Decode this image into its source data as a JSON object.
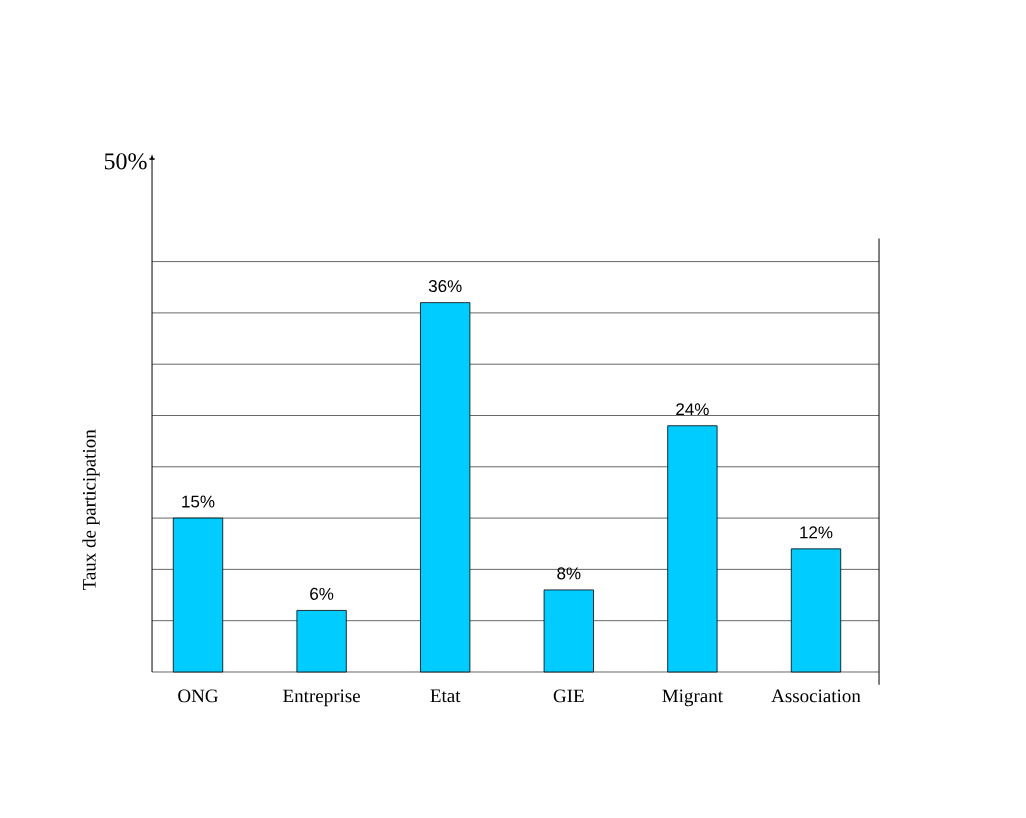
{
  "chart_data": {
    "type": "bar",
    "ylabel": "Taux de participation",
    "categories": [
      "ONG",
      "Entreprise",
      "Etat",
      "GIE",
      "Migrant",
      "Association"
    ],
    "values": [
      15,
      6,
      36,
      8,
      24,
      12
    ],
    "value_labels": [
      "15%",
      "6%",
      "36%",
      "8%",
      "24%",
      "12%"
    ],
    "color": "#00ccff",
    "ylim": [
      0,
      50
    ],
    "yticks": [
      {
        "value": 0,
        "label": null
      },
      {
        "value": 5,
        "label": null
      },
      {
        "value": 10,
        "label": null
      },
      {
        "value": 15,
        "label": null
      },
      {
        "value": 20,
        "label": null
      },
      {
        "value": 25,
        "label": null
      },
      {
        "value": 30,
        "label": null
      },
      {
        "value": 35,
        "label": null
      },
      {
        "value": 40,
        "label": null
      },
      {
        "value": 50,
        "label": "50%"
      }
    ],
    "grid": "y"
  }
}
